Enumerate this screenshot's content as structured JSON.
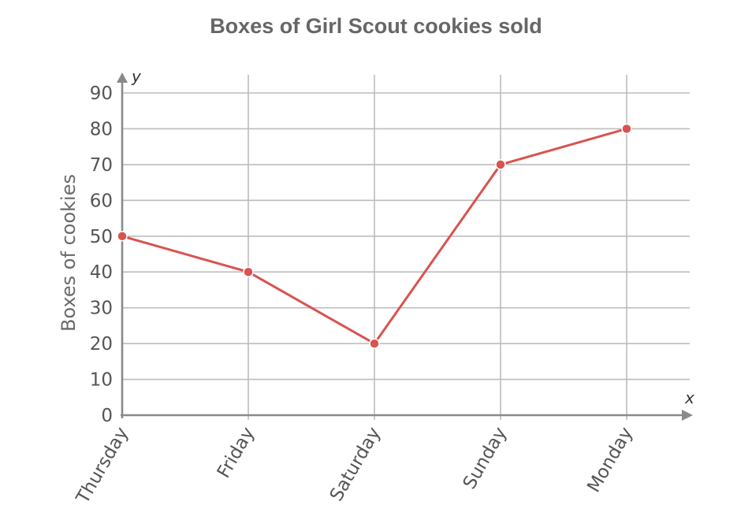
{
  "chart_data": {
    "type": "line",
    "title": "Boxes of Girl Scout cookies sold",
    "xlabel": "",
    "ylabel": "Boxes of cookies",
    "x_axis_letter": "x",
    "y_axis_letter": "y",
    "categories": [
      "Thursday",
      "Friday",
      "Saturday",
      "Sunday",
      "Monday"
    ],
    "series": [
      {
        "values": [
          50,
          40,
          20,
          70,
          80
        ]
      }
    ],
    "ylim": [
      0,
      90
    ],
    "yticks": [
      0,
      10,
      20,
      30,
      40,
      50,
      60,
      70,
      80,
      90
    ],
    "grid": true,
    "legend": "none",
    "colors": {
      "line": "#d9534f",
      "grid": "#bdbdbd",
      "axis": "#8a8a8a",
      "title": "#666666"
    }
  }
}
